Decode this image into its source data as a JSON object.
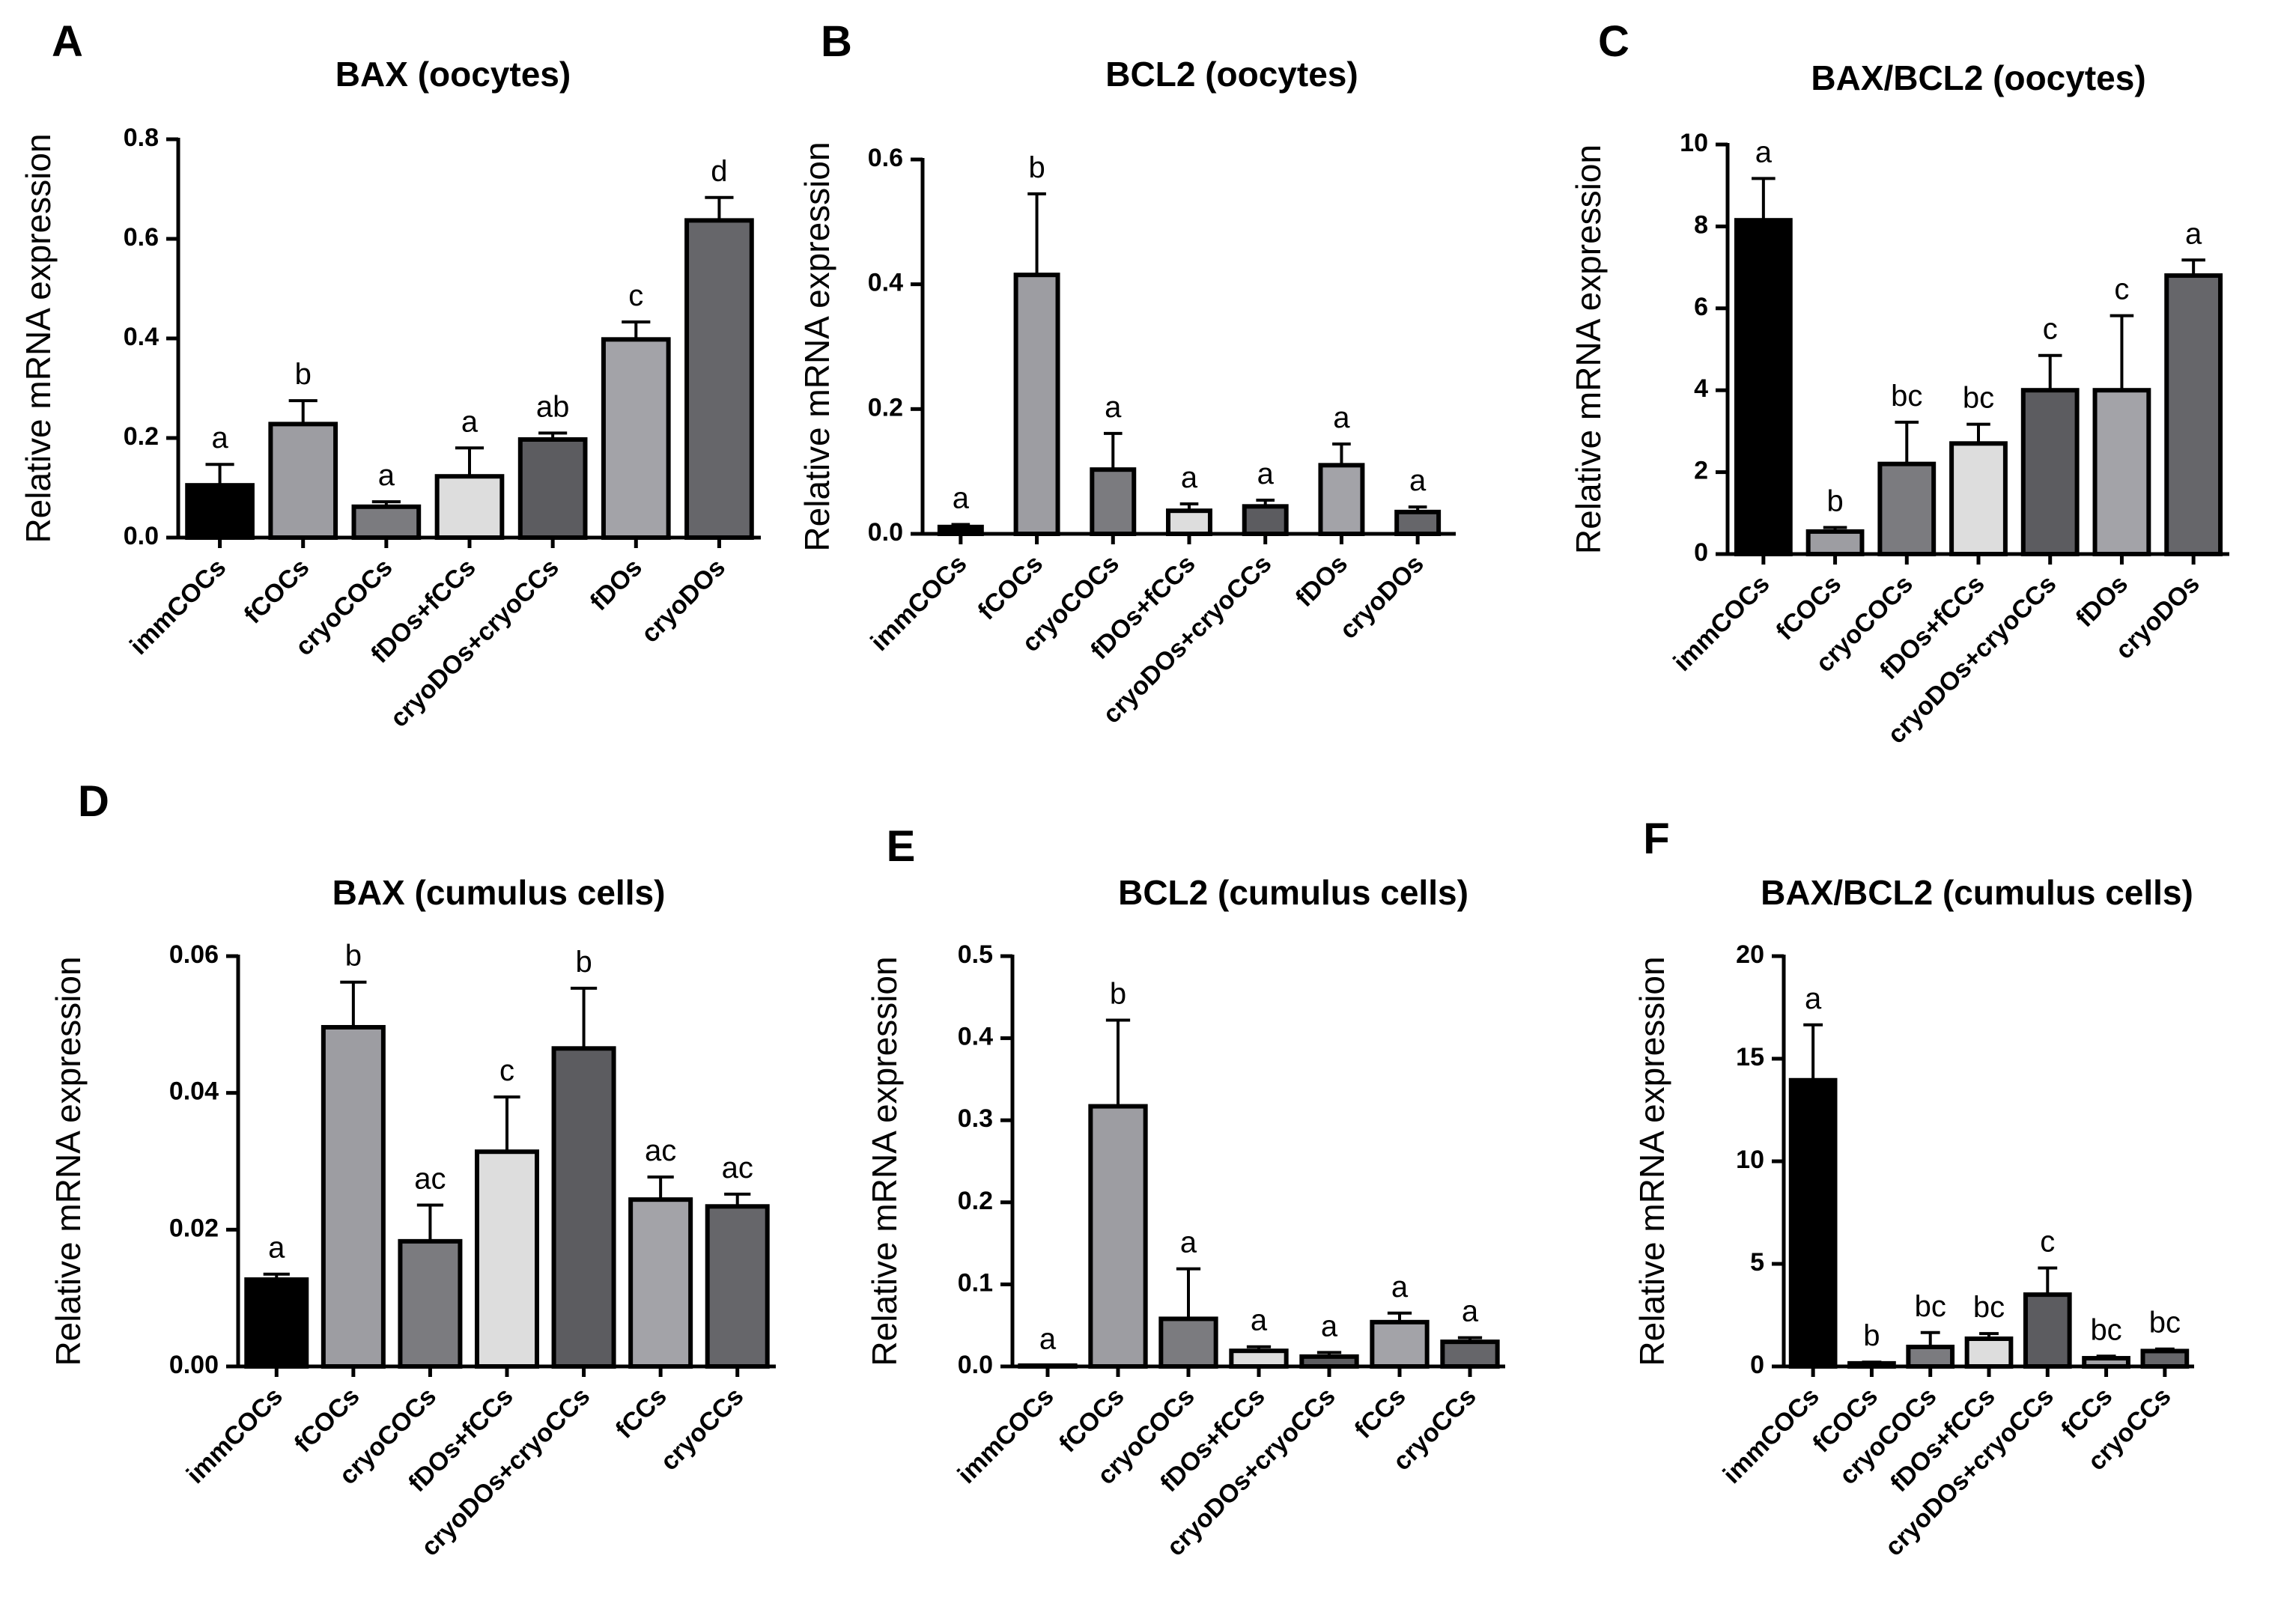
{
  "colors": {
    "black": "#000000",
    "light": "#9d9da2",
    "mid": "#7b7b7f",
    "pale": "#dddddd",
    "dark": "#5c5c60",
    "lightgray": "#a3a3a8",
    "darkgray": "#66666a"
  },
  "chart_data": [
    {
      "panel": "A",
      "type": "bar",
      "title": "BAX (oocytes)",
      "ylabel": "Relative mRNA expression",
      "xlabel": "",
      "ylim": [
        0,
        0.8
      ],
      "yticks": [
        "0.0",
        "0.2",
        "0.4",
        "0.6",
        "0.8"
      ],
      "categories": [
        "immCOCs",
        "fCOCs",
        "cryoCOCs",
        "fDOs+fCCs",
        "cryoDOs+cryoCCs",
        "fDOs",
        "cryoDOs"
      ],
      "values": [
        0.105,
        0.228,
        0.062,
        0.123,
        0.197,
        0.398,
        0.637
      ],
      "errors": [
        0.042,
        0.047,
        0.01,
        0.057,
        0.013,
        0.035,
        0.046
      ],
      "letters": [
        "a",
        "b",
        "a",
        "a",
        "ab",
        "c",
        "d"
      ],
      "colors": [
        "#000000",
        "#9d9da2",
        "#7b7b7f",
        "#dddddd",
        "#5c5c60",
        "#a3a3a8",
        "#66666a"
      ]
    },
    {
      "panel": "B",
      "type": "bar",
      "title": "BCL2 (oocytes)",
      "ylabel": "Relative mRNA expression",
      "xlabel": "",
      "ylim": [
        0,
        0.6
      ],
      "yticks": [
        "0.0",
        "0.2",
        "0.4",
        "0.6"
      ],
      "categories": [
        "immCOCs",
        "fCOCs",
        "cryoCOCs",
        "fDOs+fCCs",
        "cryoDOs+cryoCCs",
        "fDOs",
        "cryoDOs"
      ],
      "values": [
        0.011,
        0.415,
        0.103,
        0.037,
        0.044,
        0.11,
        0.035
      ],
      "errors": [
        0.004,
        0.13,
        0.058,
        0.011,
        0.01,
        0.034,
        0.008
      ],
      "letters": [
        "a",
        "b",
        "a",
        "a",
        "a",
        "a",
        "a"
      ],
      "colors": [
        "#000000",
        "#9d9da2",
        "#7b7b7f",
        "#dddddd",
        "#5c5c60",
        "#a3a3a8",
        "#66666a"
      ]
    },
    {
      "panel": "C",
      "type": "bar",
      "title": "BAX/BCL2 (oocytes)",
      "ylabel": "Relative mRNA expression",
      "xlabel": "",
      "ylim": [
        0,
        10
      ],
      "yticks": [
        "0",
        "2",
        "4",
        "6",
        "8",
        "10"
      ],
      "categories": [
        "immCOCs",
        "fCOCs",
        "cryoCOCs",
        "fDOs+fCCs",
        "cryoDOs+cryoCCs",
        "fDOs",
        "cryoDOs"
      ],
      "values": [
        8.15,
        0.55,
        2.2,
        2.7,
        4.0,
        4.0,
        6.8
      ],
      "errors": [
        1.02,
        0.1,
        1.02,
        0.47,
        0.85,
        1.82,
        0.38
      ],
      "letters": [
        "a",
        "b",
        "bc",
        "bc",
        "c",
        "c",
        "a"
      ],
      "colors": [
        "#000000",
        "#9d9da2",
        "#7b7b7f",
        "#dddddd",
        "#5c5c60",
        "#a3a3a8",
        "#66666a"
      ]
    },
    {
      "panel": "D",
      "type": "bar",
      "title": "BAX (cumulus cells)",
      "ylabel": "Relative mRNA expression",
      "xlabel": "",
      "ylim": [
        0,
        0.06
      ],
      "yticks": [
        "0.00",
        "0.02",
        "0.04",
        "0.06"
      ],
      "categories": [
        "immCOCs",
        "fCOCs",
        "cryoCOCs",
        "fDOs+fCCs",
        "cryoDOs+cryoCCs",
        "fCCs",
        "cryoCCs"
      ],
      "values": [
        0.0127,
        0.0496,
        0.0183,
        0.0314,
        0.0465,
        0.0244,
        0.0234
      ],
      "errors": [
        0.0008,
        0.0066,
        0.0053,
        0.008,
        0.0088,
        0.0033,
        0.0018
      ],
      "letters": [
        "a",
        "b",
        "ac",
        "c",
        "b",
        "ac",
        "ac"
      ],
      "colors": [
        "#000000",
        "#9d9da2",
        "#7b7b7f",
        "#dddddd",
        "#5c5c60",
        "#a3a3a8",
        "#66666a"
      ]
    },
    {
      "panel": "E",
      "type": "bar",
      "title": "BCL2 (cumulus cells)",
      "ylabel": "Relative mRNA expression",
      "xlabel": "",
      "ylim": [
        0,
        0.5
      ],
      "yticks": [
        "0.0",
        "0.1",
        "0.2",
        "0.3",
        "0.4",
        "0.5"
      ],
      "categories": [
        "immCOCs",
        "fCOCs",
        "cryoCOCs",
        "fDOs+fCCs",
        "cryoDOs+cryoCCs",
        "fCCs",
        "cryoCCs"
      ],
      "values": [
        0.001,
        0.317,
        0.058,
        0.019,
        0.012,
        0.054,
        0.03
      ],
      "errors": [
        0.0005,
        0.105,
        0.061,
        0.005,
        0.005,
        0.011,
        0.005
      ],
      "letters": [
        "a",
        "b",
        "a",
        "a",
        "a",
        "a",
        "a"
      ],
      "colors": [
        "#000000",
        "#9d9da2",
        "#7b7b7f",
        "#dddddd",
        "#5c5c60",
        "#a3a3a8",
        "#66666a"
      ]
    },
    {
      "panel": "F",
      "type": "bar",
      "title": "BAX/BCL2 (cumulus cells)",
      "ylabel": "Relative mRNA expression",
      "xlabel": "",
      "ylim": [
        0,
        20
      ],
      "yticks": [
        "0",
        "5",
        "10",
        "15",
        "20"
      ],
      "categories": [
        "immCOCs",
        "fCOCs",
        "cryoCOCs",
        "fDOs+fCCs",
        "cryoDOs+cryoCCs",
        "fCCs",
        "cryoCCs"
      ],
      "values": [
        13.95,
        0.15,
        0.95,
        1.35,
        3.5,
        0.4,
        0.75
      ],
      "errors": [
        2.7,
        0.06,
        0.7,
        0.25,
        1.3,
        0.1,
        0.1
      ],
      "letters": [
        "a",
        "b",
        "bc",
        "bc",
        "c",
        "bc",
        "bc"
      ],
      "colors": [
        "#000000",
        "#9d9da2",
        "#7b7b7f",
        "#dddddd",
        "#5c5c60",
        "#a3a3a8",
        "#66666a"
      ]
    }
  ]
}
